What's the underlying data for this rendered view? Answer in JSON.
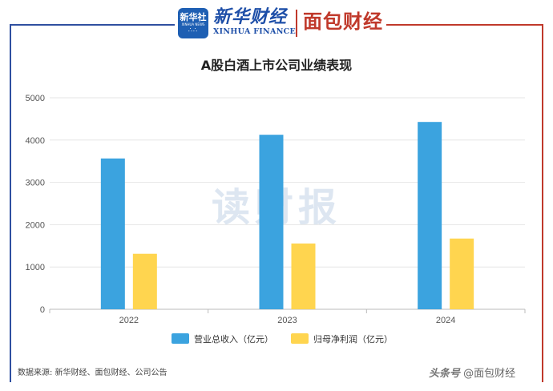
{
  "header": {
    "xinhua_badge": "新华社",
    "xinhua_badge_sub": "XINHUA NEWS",
    "xinhua_brand_cn": "新华财经",
    "xinhua_brand_en": "XINHUA FINANCE",
    "partner_brand": "面包财经"
  },
  "watermark": "读财报",
  "source_note": "数据来源: 新华财经、面包财经、公司公告",
  "footer": {
    "platform": "头条号",
    "account": "@面包财经"
  },
  "colors": {
    "series1": "#3ba3df",
    "series2": "#ffd54f",
    "frame_left": "#2f4fa0",
    "frame_right": "#c0392b"
  },
  "chart_data": {
    "type": "bar",
    "title": "A股白酒上市公司业绩表现",
    "categories": [
      "2022",
      "2023",
      "2024"
    ],
    "series": [
      {
        "name": "营业总收入（亿元）",
        "values": [
          3565,
          4125,
          4428
        ]
      },
      {
        "name": "归母净利润（亿元）",
        "values": [
          1312,
          1555,
          1672
        ]
      }
    ],
    "ylim": [
      0,
      5000
    ],
    "yticks": [
      "0",
      "1000",
      "2000",
      "3000",
      "4000",
      "5000"
    ],
    "grid": true,
    "legend_position": "bottom"
  }
}
